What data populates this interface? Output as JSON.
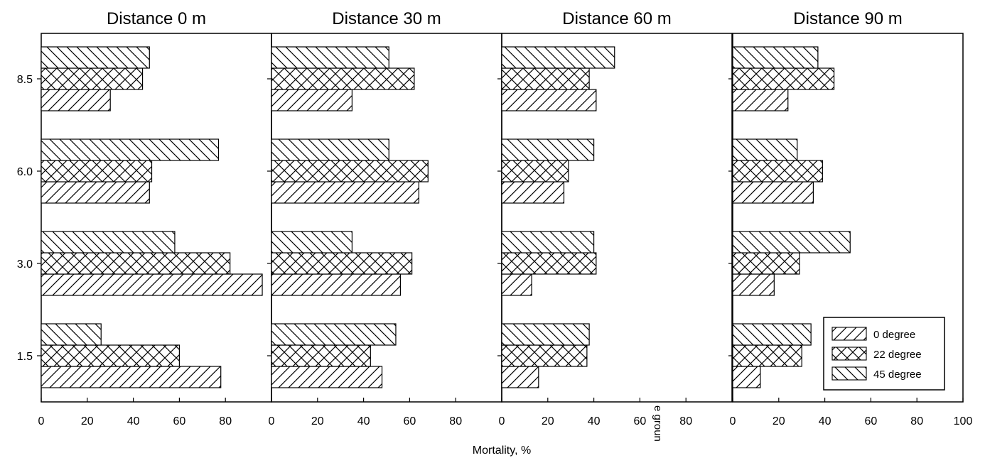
{
  "chart_data": {
    "type": "bar",
    "orientation": "horizontal",
    "xlabel": "Mortality, %",
    "stray_text": "e groun",
    "categories": [
      "1.5",
      "3.0",
      "6.0",
      "8.5"
    ],
    "xlim": [
      0,
      100
    ],
    "x_ticks": [
      "0",
      "20",
      "40",
      "60",
      "80"
    ],
    "last_x_tick": "100",
    "legend": {
      "position": "bottom-right of last panel",
      "entries": [
        "0 degree",
        "22 degree",
        "45 degree"
      ]
    },
    "series_patterns": {
      "0 degree": "forward-hatch",
      "22 degree": "cross-hatch",
      "45 degree": "back-hatch"
    },
    "panels": [
      {
        "title": "Distance 0 m",
        "series": [
          {
            "name": "0 degree",
            "values": [
              78,
              96,
              47,
              30
            ]
          },
          {
            "name": "22 degree",
            "values": [
              60,
              82,
              48,
              44
            ]
          },
          {
            "name": "45 degree",
            "values": [
              26,
              58,
              77,
              47
            ]
          }
        ]
      },
      {
        "title": "Distance 30 m",
        "series": [
          {
            "name": "0 degree",
            "values": [
              48,
              56,
              64,
              35
            ]
          },
          {
            "name": "22 degree",
            "values": [
              43,
              61,
              68,
              62
            ]
          },
          {
            "name": "45 degree",
            "values": [
              54,
              35,
              51,
              51
            ]
          }
        ]
      },
      {
        "title": "Distance 60 m",
        "series": [
          {
            "name": "0 degree",
            "values": [
              16,
              13,
              27,
              41
            ]
          },
          {
            "name": "22 degree",
            "values": [
              37,
              41,
              29,
              38
            ]
          },
          {
            "name": "45 degree",
            "values": [
              38,
              40,
              40,
              49
            ]
          }
        ]
      },
      {
        "title": "Distance 90 m",
        "series": [
          {
            "name": "0 degree",
            "values": [
              12,
              18,
              35,
              24
            ]
          },
          {
            "name": "22 degree",
            "values": [
              30,
              29,
              39,
              44
            ]
          },
          {
            "name": "45 degree",
            "values": [
              34,
              51,
              28,
              37
            ]
          }
        ]
      }
    ]
  }
}
